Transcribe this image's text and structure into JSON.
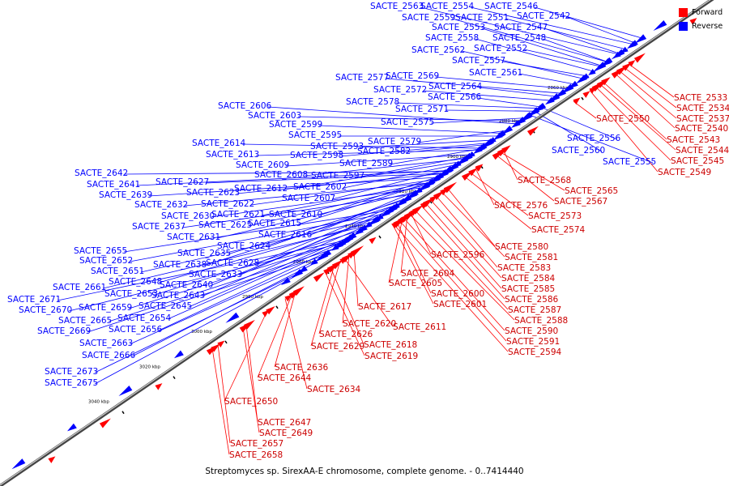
{
  "caption": "Streptomyces sp. SirexAA-E chromosome, complete genome. - 0..7414440",
  "legend": [
    {
      "label": "Forward",
      "color": "#ff0000"
    },
    {
      "label": "Reverse",
      "color": "#0000ff"
    }
  ],
  "colors": {
    "forward": "#ff0000",
    "reverse": "#0000ff",
    "axis": "#555555"
  },
  "axis_ticks": [
    "2860 kbp",
    "2880 kbp",
    "2900 kbp",
    "2920 kbp",
    "2940 kbp",
    "2960 kbp",
    "2980 kbp",
    "3000 kbp",
    "3020 kbp",
    "3040 kbp"
  ],
  "reverse_labels": [
    "SACTE_2563",
    "SACTE_2554",
    "SACTE_2546",
    "SACTE_2559",
    "SACTE_2551",
    "SACTE_2542",
    "SACTE_2553",
    "SACTE_2547",
    "SACTE_2558",
    "SACTE_2548",
    "SACTE_2562",
    "SACTE_2552",
    "SACTE_2557",
    "SACTE_2561",
    "SACTE_2577",
    "SACTE_2569",
    "SACTE_2564",
    "SACTE_2572",
    "SACTE_2566",
    "SACTE_2578",
    "SACTE_2571",
    "SACTE_2606",
    "SACTE_2603",
    "SACTE_2575",
    "SACTE_2599",
    "SACTE_2595",
    "SACTE_2579",
    "SACTE_2614",
    "SACTE_2593",
    "SACTE_2613",
    "SACTE_2598",
    "SACTE_2582",
    "SACTE_2609",
    "SACTE_2589",
    "SACTE_2642",
    "SACTE_2608",
    "SACTE_2597",
    "SACTE_2627",
    "SACTE_2641",
    "SACTE_2612",
    "SACTE_2602",
    "SACTE_2623",
    "SACTE_2639",
    "SACTE_2607",
    "SACTE_2632",
    "SACTE_2622",
    "SACTE_2610",
    "SACTE_2630",
    "SACTE_2621",
    "SACTE_2637",
    "SACTE_2625",
    "SACTE_2615",
    "SACTE_2631",
    "SACTE_2616",
    "SACTE_2624",
    "SACTE_2655",
    "SACTE_2635",
    "SACTE_2652",
    "SACTE_2638",
    "SACTE_2628",
    "SACTE_2651",
    "SACTE_2633",
    "SACTE_2648",
    "SACTE_2640",
    "SACTE_2661",
    "SACTE_2653",
    "SACTE_2643",
    "SACTE_2671",
    "SACTE_2659",
    "SACTE_2645",
    "SACTE_2670",
    "SACTE_2654",
    "SACTE_2665",
    "SACTE_2656",
    "SACTE_2669",
    "SACTE_2663",
    "SACTE_2666",
    "SACTE_2673",
    "SACTE_2675",
    "SACTE_2560",
    "SACTE_2556",
    "SACTE_2555"
  ],
  "forward_labels": [
    "SACTE_2533",
    "SACTE_2534",
    "SACTE_2537",
    "SACTE_2540",
    "SACTE_2550",
    "SACTE_2543",
    "SACTE_2544",
    "SACTE_2545",
    "SACTE_2549",
    "SACTE_2568",
    "SACTE_2565",
    "SACTE_2567",
    "SACTE_2576",
    "SACTE_2573",
    "SACTE_2574",
    "SACTE_2580",
    "SACTE_2596",
    "SACTE_2581",
    "SACTE_2583",
    "SACTE_2604",
    "SACTE_2584",
    "SACTE_2605",
    "SACTE_2585",
    "SACTE_2600",
    "SACTE_2586",
    "SACTE_2601",
    "SACTE_2587",
    "SACTE_2617",
    "SACTE_2588",
    "SACTE_2620",
    "SACTE_2611",
    "SACTE_2590",
    "SACTE_2626",
    "SACTE_2591",
    "SACTE_2629",
    "SACTE_2618",
    "SACTE_2594",
    "SACTE_2619",
    "SACTE_2636",
    "SACTE_2644",
    "SACTE_2634",
    "SACTE_2650",
    "SACTE_2647",
    "SACTE_2649",
    "SACTE_2657",
    "SACTE_2658"
  ]
}
